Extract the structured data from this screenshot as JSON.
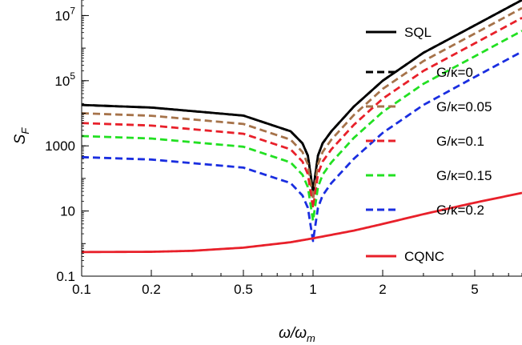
{
  "chart_data": {
    "type": "line",
    "xscale": "log",
    "yscale": "log",
    "xlim": [
      0.1,
      8
    ],
    "ylim": [
      0.1,
      30000000.0
    ],
    "xlabel": "ω/ω_m",
    "xlabel_main": "ω/ω",
    "xlabel_sub": "m",
    "ylabel": "S_F",
    "ylabel_main": "S",
    "ylabel_sub": "F",
    "x_ticks": [
      {
        "value": 0.1,
        "label": "0.1"
      },
      {
        "value": 0.2,
        "label": "0.2"
      },
      {
        "value": 0.5,
        "label": "0.5"
      },
      {
        "value": 1,
        "label": "1"
      },
      {
        "value": 2,
        "label": "2"
      },
      {
        "value": 5,
        "label": "5"
      }
    ],
    "y_ticks": [
      {
        "value": 0.1,
        "label": "0.1"
      },
      {
        "value": 10,
        "label": "10"
      },
      {
        "value": 1000,
        "label": "1000"
      },
      {
        "value": 100000,
        "label": "10",
        "sup": "5"
      },
      {
        "value": 10000000,
        "label": "10",
        "sup": "7"
      }
    ],
    "grid": false,
    "legend_position": "right",
    "series": [
      {
        "name": "SQL",
        "color": "#000000",
        "dash": "solid",
        "x": [
          0.1,
          0.2,
          0.5,
          0.8,
          0.9,
          0.95,
          1.0,
          1.05,
          1.1,
          1.2,
          1.5,
          2,
          3,
          5,
          8
        ],
        "y": [
          18000,
          15000,
          8500,
          2800,
          1200,
          500,
          40,
          500,
          1200,
          2800,
          16000,
          100000,
          720000,
          5000000,
          30000000
        ]
      },
      {
        "name": "G/κ=0",
        "color": "#000000",
        "dash": "dashed",
        "x": [
          0.1,
          0.2,
          0.5,
          0.8,
          0.9,
          0.95,
          1.0,
          1.05,
          1.1,
          1.2,
          1.5,
          2,
          3,
          5,
          8
        ],
        "y": [
          18000,
          15000,
          8500,
          2800,
          1200,
          500,
          40,
          500,
          1200,
          2800,
          16000,
          100000,
          720000,
          5000000,
          30000000
        ]
      },
      {
        "name": "G/κ=0.05",
        "color": "#a6734a",
        "dash": "dashed",
        "x": [
          0.1,
          0.2,
          0.5,
          0.8,
          0.9,
          0.95,
          1.0,
          1.05,
          1.1,
          1.2,
          1.5,
          2,
          3,
          5,
          8
        ],
        "y": [
          10000,
          8400,
          4700,
          1550,
          650,
          270,
          22,
          270,
          650,
          1550,
          8800,
          56000,
          400000,
          2800000,
          17000000
        ]
      },
      {
        "name": "G/κ=0.1",
        "color": "#e8202a",
        "dash": "dashed",
        "x": [
          0.1,
          0.2,
          0.5,
          0.8,
          0.9,
          0.95,
          1.0,
          1.05,
          1.1,
          1.2,
          1.5,
          2,
          3,
          5,
          8
        ],
        "y": [
          5000,
          4200,
          2350,
          780,
          330,
          135,
          12,
          135,
          330,
          780,
          4400,
          28000,
          200000,
          1400000,
          8500000
        ]
      },
      {
        "name": "G/κ=0.15",
        "color": "#22e022",
        "dash": "dashed",
        "x": [
          0.1,
          0.2,
          0.5,
          0.8,
          0.9,
          0.95,
          1.0,
          1.05,
          1.1,
          1.2,
          1.5,
          2,
          3,
          5,
          8
        ],
        "y": [
          2000,
          1680,
          940,
          310,
          130,
          54,
          5,
          54,
          130,
          310,
          1750,
          11000,
          80000,
          560000,
          3400000
        ]
      },
      {
        "name": "G/κ=0.2",
        "color": "#1a2ee0",
        "dash": "dashed",
        "x": [
          0.1,
          0.2,
          0.5,
          0.8,
          0.9,
          0.95,
          1.0,
          1.05,
          1.1,
          1.2,
          1.5,
          2,
          3,
          5,
          8
        ],
        "y": [
          450,
          380,
          215,
          72,
          30,
          12.5,
          1.2,
          12.5,
          30,
          72,
          400,
          2500,
          18000,
          130000,
          780000
        ]
      },
      {
        "name": "CQNC",
        "color": "#e8202a",
        "dash": "solid",
        "x": [
          0.1,
          0.2,
          0.3,
          0.5,
          0.8,
          1.0,
          1.5,
          2,
          3,
          5,
          8
        ],
        "y": [
          0.55,
          0.56,
          0.6,
          0.75,
          1.1,
          1.45,
          2.5,
          4,
          8,
          18,
          36
        ]
      }
    ]
  }
}
